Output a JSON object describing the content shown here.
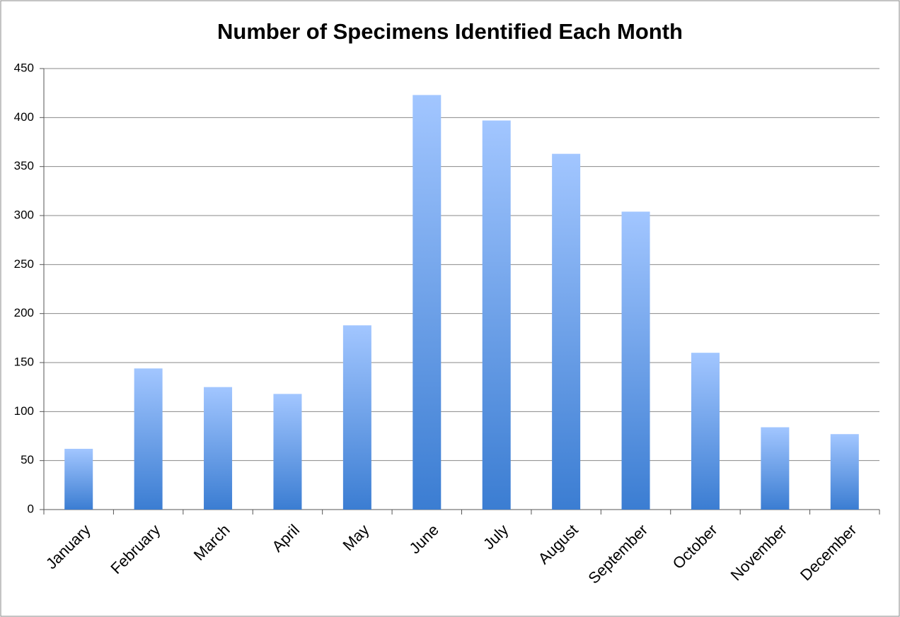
{
  "chart_data": {
    "type": "bar",
    "title": "Number of Specimens Identified Each Month",
    "categories": [
      "January",
      "February",
      "March",
      "April",
      "May",
      "June",
      "July",
      "August",
      "September",
      "October",
      "November",
      "December"
    ],
    "values": [
      62,
      144,
      125,
      118,
      188,
      423,
      397,
      363,
      304,
      160,
      84,
      77
    ],
    "color_top": "#a2c6ff",
    "color_bottom": "#3b7dd2",
    "ylim": [
      0,
      450
    ],
    "yticks": [
      0,
      50,
      100,
      150,
      200,
      250,
      300,
      350,
      400,
      450
    ],
    "grid": true
  }
}
